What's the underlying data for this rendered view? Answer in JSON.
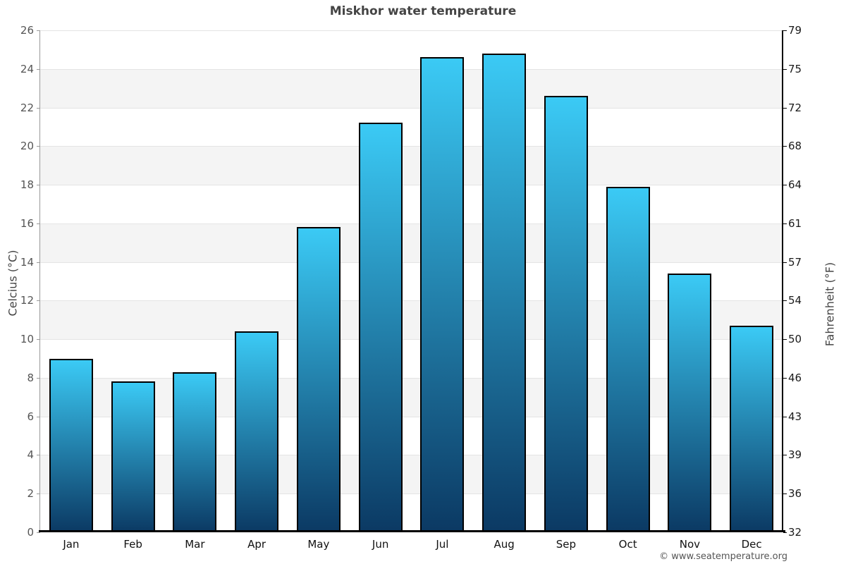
{
  "title": "Miskhor water temperature",
  "footer": "© www.seatemperature.org",
  "axes": {
    "left_label": "Celcius (°C)",
    "right_label": "Fahrenheit (°F)",
    "left_ticks": [
      26,
      24,
      22,
      20,
      18,
      16,
      14,
      12,
      10,
      8,
      6,
      4,
      2,
      0
    ],
    "right_ticks": [
      79,
      75,
      72,
      68,
      64,
      61,
      57,
      54,
      50,
      46,
      43,
      39,
      36,
      32
    ]
  },
  "colors": {
    "bar_gradient_top": "#3bcaf5",
    "bar_gradient_bottom": "#0b3963",
    "bar_border": "#000000",
    "band_white": "#ffffff",
    "band_alt": "#f4f4f4",
    "grid_line": "#e4e4e4",
    "left_axis_line": "#999999",
    "right_axis_line": "#000000",
    "bottom_axis_line": "#000000",
    "title_text": "#444444",
    "left_tick_text": "#555555",
    "right_tick_text": "#1a1a1a",
    "month_text": "#111111",
    "axis_title_text": "#444444",
    "footer_text": "#555555"
  },
  "chart_data": {
    "type": "bar",
    "categories": [
      "Jan",
      "Feb",
      "Mar",
      "Apr",
      "May",
      "Jun",
      "Jul",
      "Aug",
      "Sep",
      "Oct",
      "Nov",
      "Dec"
    ],
    "values": [
      9.0,
      7.8,
      8.3,
      10.4,
      15.8,
      21.2,
      24.6,
      24.8,
      22.6,
      17.9,
      13.4,
      10.7
    ],
    "title": "Miskhor water temperature",
    "xlabel": "",
    "ylabel": "Celcius (°C)",
    "y2label": "Fahrenheit (°F)",
    "ylim": [
      0,
      26
    ],
    "y_tick_step": 2,
    "y2_ticks": [
      79,
      75,
      72,
      68,
      64,
      61,
      57,
      54,
      50,
      46,
      43,
      39,
      36,
      32
    ],
    "grid": "alternating-horizontal-bands",
    "legend": "none",
    "bar_style": "vertical gradient light-cyan to dark-navy, black outline"
  }
}
